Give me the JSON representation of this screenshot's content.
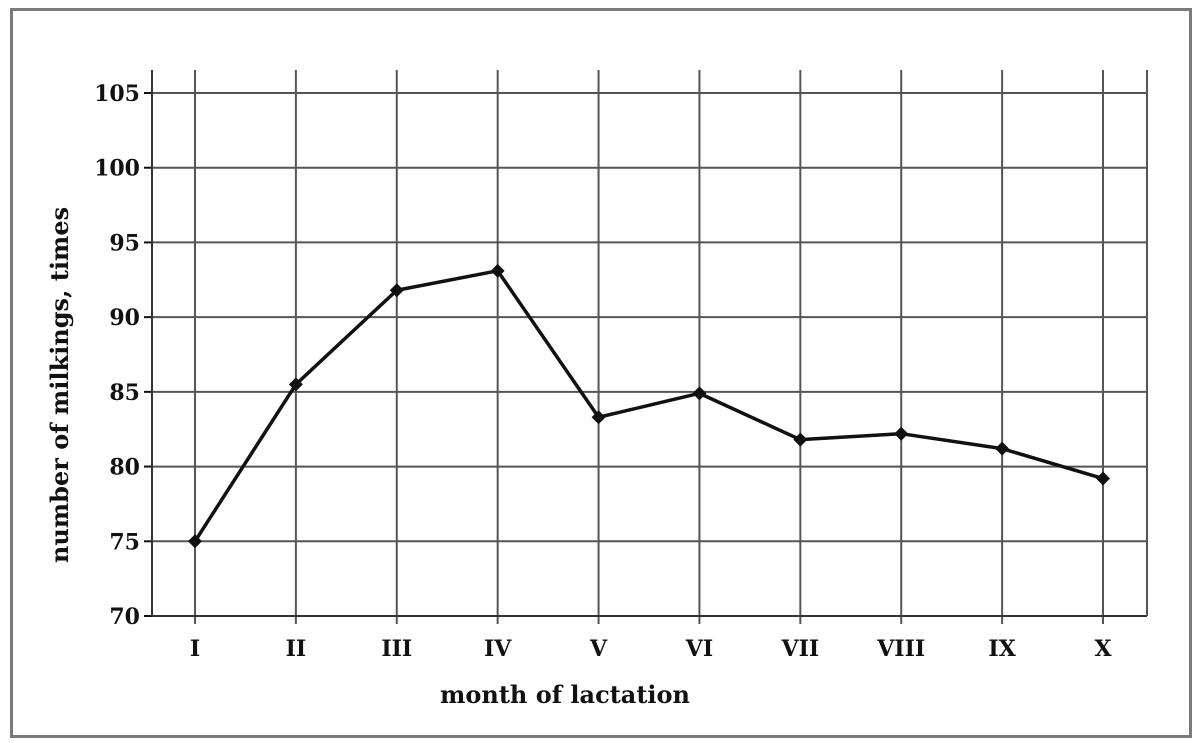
{
  "chart_data": {
    "type": "line",
    "title": "",
    "xlabel": "month of lactation",
    "ylabel": "number of milkings, times",
    "categories": [
      "I",
      "II",
      "III",
      "IV",
      "V",
      "VI",
      "VII",
      "VIII",
      "IX",
      "X"
    ],
    "series": [
      {
        "values": [
          75.0,
          85.5,
          91.8,
          93.1,
          83.3,
          84.9,
          81.8,
          82.2,
          81.2,
          79.2
        ]
      }
    ],
    "ylim": [
      70,
      105
    ],
    "yticks": [
      70,
      75,
      80,
      85,
      90,
      95,
      100,
      105
    ],
    "grid": true,
    "line_color": "#111111",
    "grid_color": "#555555"
  }
}
